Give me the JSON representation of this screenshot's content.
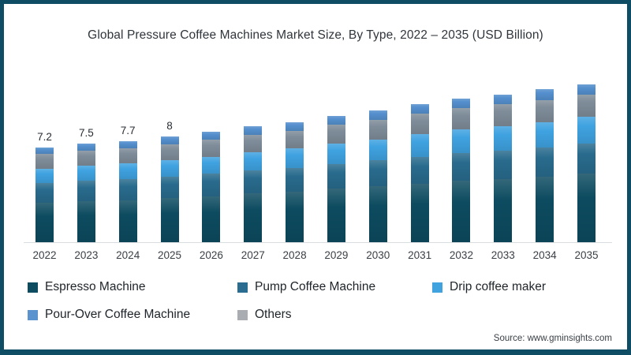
{
  "frame": {
    "border_color": "#0e4d64",
    "background": "#ffffff"
  },
  "title": "Global Pressure Coffee Machines Market Size, By Type, 2022 – 2035 (USD Billion)",
  "source": "Source: www.gminsights.com",
  "chart_data": {
    "type": "bar",
    "stacked": true,
    "title": "Global Pressure Coffee Machines Market Size, By Type, 2022 – 2035 (USD Billion)",
    "unit": "USD Billion",
    "categories": [
      "2022",
      "2023",
      "2024",
      "2025",
      "2026",
      "2027",
      "2028",
      "2029",
      "2030",
      "2031",
      "2032",
      "2033",
      "2034",
      "2035"
    ],
    "totals": [
      7.2,
      7.5,
      7.7,
      8.0,
      8.4,
      8.8,
      9.1,
      9.6,
      10.0,
      10.5,
      10.9,
      11.2,
      11.6,
      12.0
    ],
    "total_labels": [
      "7.2",
      "7.5",
      "7.7",
      "8",
      "",
      "",
      "",
      "",
      "",
      "",
      "",
      "",
      "",
      ""
    ],
    "series": [
      {
        "name": "Espresso Machine",
        "color": "#0d4b60",
        "swatch_color": "#0d4b60",
        "values": [
          3.0,
          3.1,
          3.2,
          3.35,
          3.5,
          3.7,
          3.85,
          4.05,
          4.25,
          4.45,
          4.65,
          4.8,
          5.0,
          5.2
        ]
      },
      {
        "name": "Pump Coffee Machine",
        "color": "#296b8d",
        "swatch_color": "#2a6d90",
        "values": [
          1.5,
          1.55,
          1.6,
          1.65,
          1.7,
          1.75,
          1.8,
          1.9,
          1.95,
          2.05,
          2.1,
          2.15,
          2.2,
          2.3
        ]
      },
      {
        "name": "Drip coffee maker",
        "color": "#3fa2e0",
        "swatch_color": "#41a2e0",
        "values": [
          1.1,
          1.15,
          1.2,
          1.25,
          1.3,
          1.4,
          1.45,
          1.55,
          1.6,
          1.7,
          1.8,
          1.85,
          1.9,
          2.0
        ]
      },
      {
        "name": "Pour-Over Coffee Machine",
        "color": "#548fcd",
        "swatch_color": "#5b93cf",
        "values": [
          0.5,
          0.55,
          0.55,
          0.55,
          0.6,
          0.65,
          0.65,
          0.7,
          0.7,
          0.75,
          0.75,
          0.75,
          0.8,
          0.8
        ]
      },
      {
        "name": "Others",
        "color": "#7e8c99",
        "swatch_color": "#a9adb2",
        "values": [
          1.1,
          1.15,
          1.15,
          1.2,
          1.3,
          1.3,
          1.35,
          1.4,
          1.5,
          1.55,
          1.6,
          1.65,
          1.7,
          1.7
        ]
      }
    ],
    "stack_order_bottom_to_top": [
      "Espresso Machine",
      "Pump Coffee Machine",
      "Drip coffee maker",
      "Others",
      "Pour-Over Coffee Machine"
    ],
    "legend_position": "bottom-left",
    "grid": false,
    "x_axis_line": true,
    "ylim": [
      0,
      12.5
    ]
  }
}
